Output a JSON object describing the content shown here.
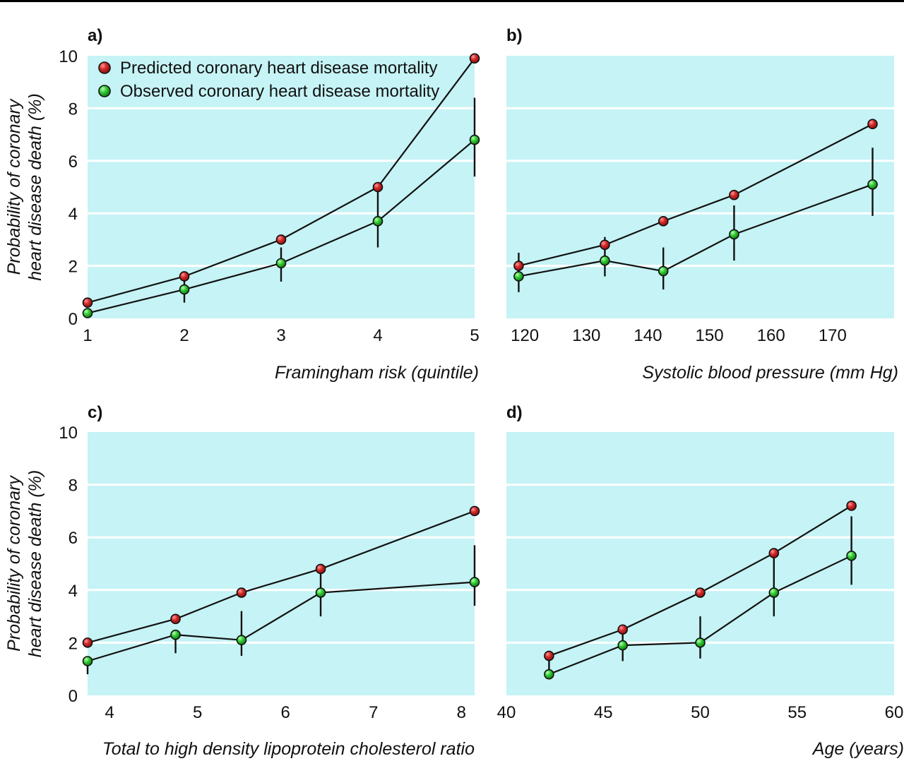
{
  "legend": {
    "predicted": "Predicted coronary heart disease mortality",
    "observed": "Observed coronary heart disease mortality"
  },
  "colors": {
    "plot_bg": "#c6f3f5",
    "gridline": "#ffffff",
    "predicted": "#d42a2a",
    "observed": "#33cc33",
    "line": "#111111"
  },
  "chart_data": [
    {
      "type": "line",
      "panel": "a)",
      "xlabel": "Framingham risk (quintile)",
      "ylabel": "Probability of coronary heart disease death (%)",
      "xlim": [
        1,
        5
      ],
      "ylim": [
        0,
        10
      ],
      "xticks": [
        1,
        2,
        3,
        4,
        5
      ],
      "yticks": [
        0,
        2,
        4,
        6,
        8,
        10
      ],
      "grid": true,
      "legend_position": "top-left",
      "series": [
        {
          "name": "Predicted coronary heart disease mortality",
          "x": [
            1,
            2,
            3,
            4,
            5
          ],
          "y": [
            0.6,
            1.6,
            3.0,
            5.0,
            9.9
          ]
        },
        {
          "name": "Observed coronary heart disease mortality",
          "x": [
            1,
            2,
            3,
            4,
            5
          ],
          "y": [
            0.2,
            1.1,
            2.1,
            3.7,
            6.8
          ],
          "err_low": [
            0.2,
            0.6,
            1.4,
            2.7,
            5.4
          ],
          "err_high": [
            0.2,
            1.5,
            2.7,
            5.0,
            8.4
          ]
        }
      ]
    },
    {
      "type": "line",
      "panel": "b)",
      "xlabel": "Systolic blood pressure (mm Hg)",
      "xlim": [
        117,
        180
      ],
      "ylim": [
        0,
        10
      ],
      "xticks": [
        120,
        130,
        140,
        150,
        160,
        170
      ],
      "yticks": [
        0,
        2,
        4,
        6,
        8,
        10
      ],
      "grid": true,
      "series": [
        {
          "name": "Predicted coronary heart disease mortality",
          "x": [
            119,
            133,
            142.5,
            154,
            176.5
          ],
          "y": [
            2.0,
            2.8,
            3.7,
            4.7,
            7.4
          ]
        },
        {
          "name": "Observed coronary heart disease mortality",
          "x": [
            119,
            133,
            142.5,
            154,
            176.5
          ],
          "y": [
            1.6,
            2.2,
            1.8,
            3.2,
            5.1
          ],
          "err_low": [
            1.0,
            1.6,
            1.1,
            2.2,
            3.9
          ],
          "err_high": [
            2.5,
            3.1,
            2.7,
            4.3,
            6.5
          ]
        }
      ]
    },
    {
      "type": "line",
      "panel": "c)",
      "xlabel": "Total to high density lipoprotein cholesterol ratio",
      "ylabel": "Probability of coronary heart disease death (%)",
      "xlim": [
        3.75,
        8.15
      ],
      "ylim": [
        0,
        10
      ],
      "xticks": [
        4,
        5,
        6,
        7,
        8
      ],
      "yticks": [
        0,
        2,
        4,
        6,
        8,
        10
      ],
      "grid": true,
      "series": [
        {
          "name": "Predicted coronary heart disease mortality",
          "x": [
            3.75,
            4.75,
            5.5,
            6.4,
            8.15
          ],
          "y": [
            2.0,
            2.9,
            3.9,
            4.8,
            7.0
          ]
        },
        {
          "name": "Observed coronary heart disease mortality",
          "x": [
            3.75,
            4.75,
            5.5,
            6.4,
            8.15
          ],
          "y": [
            1.3,
            2.3,
            2.1,
            3.9,
            4.3
          ],
          "err_low": [
            0.8,
            1.6,
            1.5,
            3.0,
            3.4
          ],
          "err_high": [
            1.3,
            2.3,
            3.2,
            4.9,
            5.7
          ]
        }
      ]
    },
    {
      "type": "line",
      "panel": "d)",
      "xlabel": "Age (years)",
      "xlim": [
        40,
        60
      ],
      "ylim": [
        0,
        10
      ],
      "xticks": [
        40,
        45,
        50,
        55,
        60
      ],
      "yticks": [
        0,
        2,
        4,
        6,
        8,
        10
      ],
      "grid": true,
      "series": [
        {
          "name": "Predicted coronary heart disease mortality",
          "x": [
            42.2,
            46,
            50,
            53.8,
            57.8
          ],
          "y": [
            1.5,
            2.5,
            3.9,
            5.4,
            7.2
          ]
        },
        {
          "name": "Observed coronary heart disease mortality",
          "x": [
            42.2,
            46,
            50,
            53.8,
            57.8
          ],
          "y": [
            0.8,
            1.9,
            2.0,
            3.9,
            5.3
          ],
          "err_low": [
            0.8,
            1.3,
            1.4,
            3.0,
            4.2
          ],
          "err_high": [
            1.5,
            2.6,
            3.0,
            5.4,
            6.8
          ]
        }
      ]
    }
  ]
}
